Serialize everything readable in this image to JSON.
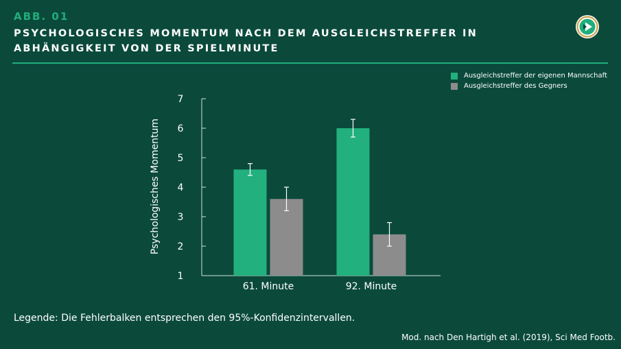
{
  "header": {
    "label": "ABB. 01",
    "title_line1": "PSYCHOLOGISCHES MOMENTUM NACH DEM AUSGLEICHSTREFFER IN",
    "title_line2": "ABHÄNGIGKEIT VON DER SPIELMINUTE"
  },
  "colors": {
    "background": "#0b4a3b",
    "accent": "#1fae7c",
    "series_own": "#22b07e",
    "series_opponent": "#8c8c8c"
  },
  "chart_data": {
    "type": "bar",
    "categories": [
      "61. Minute",
      "92. Minute"
    ],
    "series": [
      {
        "name": "Ausgleichstreffer der eigenen Mannschaft",
        "values": [
          4.6,
          6.0
        ],
        "ci_low": [
          4.4,
          5.7
        ],
        "ci_high": [
          4.8,
          6.3
        ],
        "color": "#22b07e"
      },
      {
        "name": "Ausgleichstreffer des Gegners",
        "values": [
          3.6,
          2.4
        ],
        "ci_low": [
          3.2,
          2.0
        ],
        "ci_high": [
          4.0,
          2.8
        ],
        "color": "#8c8c8c"
      }
    ],
    "ylabel": "Psychologisches Momentum",
    "ylim": [
      1,
      7
    ],
    "yticks": [
      "1",
      "2",
      "3",
      "4",
      "5",
      "6",
      "7"
    ],
    "error_bars": true,
    "legend_position": "top-right"
  },
  "footer": {
    "note": "Legende: Die Fehlerbalken entsprechen den 95%-Konfidenzintervallen.",
    "source": "Mod. nach Den Hartigh et al. (2019), Sci Med Footb."
  }
}
